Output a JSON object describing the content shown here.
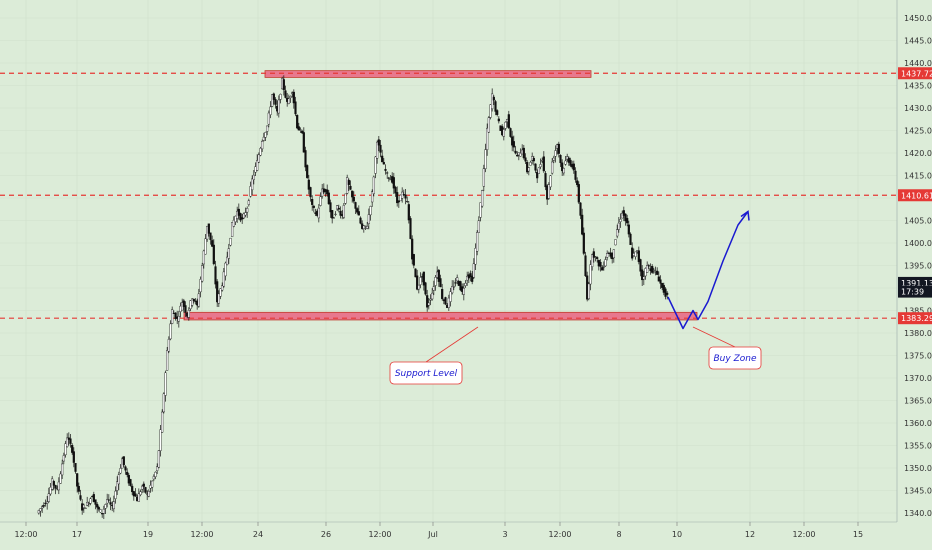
{
  "chart_data": {
    "type": "candlestick",
    "y_axis": {
      "ticks": [
        "1450.00",
        "1445.00",
        "1440.00",
        "1435.00",
        "1430.00",
        "1425.00",
        "1420.00",
        "1415.00",
        "1410.00",
        "1405.00",
        "1400.00",
        "1395.00",
        "1390.00",
        "1385.00",
        "1380.00",
        "1375.00",
        "1370.00",
        "1365.00",
        "1360.00",
        "1355.00",
        "1350.00",
        "1345.00",
        "1340.00"
      ],
      "range": [
        1338,
        1454
      ]
    },
    "x_axis": {
      "ticks": [
        "12:00",
        "17",
        "19",
        "12:00",
        "24",
        "26",
        "12:00",
        "Jul",
        "3",
        "12:00",
        "8",
        "10",
        "12",
        "12:00",
        "15"
      ]
    },
    "price_tags": [
      {
        "label": "1437.72",
        "value": 1437.72,
        "color": "#e53935"
      },
      {
        "label": "1410.61",
        "value": 1410.61,
        "color": "#e53935"
      },
      {
        "label": "1391.13",
        "value": 1391.13,
        "color": "#131722"
      },
      {
        "label": "17:39",
        "value": 1389.2,
        "color": "#131722"
      },
      {
        "label": "1383.29",
        "value": 1383.29,
        "color": "#e53935"
      }
    ],
    "horizontal_levels": [
      1437.72,
      1410.61,
      1383.29
    ],
    "zones": [
      {
        "name": "resistance",
        "from": 1436.8,
        "to": 1438.3
      },
      {
        "name": "support",
        "from": 1382.9,
        "to": 1384.6
      }
    ],
    "annotations": [
      {
        "name": "support",
        "text": "Support Level"
      },
      {
        "name": "buy",
        "text": "Buy Zone"
      }
    ],
    "price_path": [
      [
        0,
        1340
      ],
      [
        2,
        1343
      ],
      [
        3,
        1347
      ],
      [
        4,
        1345
      ],
      [
        5,
        1351
      ],
      [
        6,
        1357
      ],
      [
        7,
        1354
      ],
      [
        8,
        1346
      ],
      [
        9,
        1341
      ],
      [
        10,
        1342
      ],
      [
        11,
        1344
      ],
      [
        12,
        1341
      ],
      [
        13,
        1340
      ],
      [
        14,
        1343
      ],
      [
        15,
        1341
      ],
      [
        16,
        1347
      ],
      [
        17,
        1352
      ],
      [
        18,
        1348
      ],
      [
        19,
        1345
      ],
      [
        20,
        1343
      ],
      [
        21,
        1346
      ],
      [
        22,
        1344
      ],
      [
        24,
        1350
      ],
      [
        25,
        1362
      ],
      [
        26,
        1376
      ],
      [
        27,
        1385
      ],
      [
        28,
        1383
      ],
      [
        29,
        1387
      ],
      [
        30,
        1384
      ],
      [
        31,
        1388
      ],
      [
        32,
        1386
      ],
      [
        33,
        1395
      ],
      [
        34,
        1404
      ],
      [
        35,
        1399
      ],
      [
        36,
        1387
      ],
      [
        37,
        1391
      ],
      [
        38,
        1397
      ],
      [
        39,
        1404
      ],
      [
        40,
        1407
      ],
      [
        41,
        1405
      ],
      [
        42,
        1408
      ],
      [
        43,
        1414
      ],
      [
        44,
        1418
      ],
      [
        45,
        1423
      ],
      [
        46,
        1426
      ],
      [
        47,
        1433
      ],
      [
        48,
        1429
      ],
      [
        49,
        1436
      ],
      [
        50,
        1431
      ],
      [
        51,
        1434
      ],
      [
        52,
        1426
      ],
      [
        53,
        1424
      ],
      [
        54,
        1414
      ],
      [
        55,
        1408
      ],
      [
        56,
        1406
      ],
      [
        57,
        1412
      ],
      [
        58,
        1411
      ],
      [
        59,
        1405
      ],
      [
        60,
        1408
      ],
      [
        61,
        1406
      ],
      [
        62,
        1414
      ],
      [
        63,
        1410
      ],
      [
        64,
        1407
      ],
      [
        65,
        1403
      ],
      [
        66,
        1404
      ],
      [
        67,
        1411
      ],
      [
        68,
        1423
      ],
      [
        69,
        1418
      ],
      [
        70,
        1415
      ],
      [
        71,
        1414
      ],
      [
        72,
        1409
      ],
      [
        73,
        1411
      ],
      [
        74,
        1409
      ],
      [
        75,
        1397
      ],
      [
        76,
        1390
      ],
      [
        77,
        1393
      ],
      [
        78,
        1386
      ],
      [
        79,
        1389
      ],
      [
        80,
        1394
      ],
      [
        81,
        1388
      ],
      [
        82,
        1386
      ],
      [
        83,
        1390
      ],
      [
        84,
        1392
      ],
      [
        85,
        1389
      ],
      [
        86,
        1393
      ],
      [
        87,
        1392
      ],
      [
        88,
        1402
      ],
      [
        89,
        1412
      ],
      [
        90,
        1425
      ],
      [
        91,
        1433
      ],
      [
        92,
        1428
      ],
      [
        93,
        1424
      ],
      [
        94,
        1428
      ],
      [
        95,
        1422
      ],
      [
        96,
        1419
      ],
      [
        97,
        1421
      ],
      [
        98,
        1416
      ],
      [
        99,
        1419
      ],
      [
        100,
        1415
      ],
      [
        101,
        1419
      ],
      [
        102,
        1410
      ],
      [
        103,
        1418
      ],
      [
        104,
        1422
      ],
      [
        105,
        1416
      ],
      [
        106,
        1419
      ],
      [
        107,
        1417
      ],
      [
        108,
        1413
      ],
      [
        109,
        1402
      ],
      [
        110,
        1388
      ],
      [
        111,
        1398
      ],
      [
        112,
        1396
      ],
      [
        113,
        1394
      ],
      [
        114,
        1398
      ],
      [
        115,
        1397
      ],
      [
        116,
        1403
      ],
      [
        117,
        1407
      ],
      [
        118,
        1404
      ],
      [
        119,
        1397
      ],
      [
        120,
        1398
      ],
      [
        121,
        1392
      ],
      [
        122,
        1395
      ],
      [
        123,
        1394
      ],
      [
        124,
        1393
      ],
      [
        125,
        1390
      ],
      [
        126,
        1388
      ]
    ],
    "projection": [
      [
        126,
        1388
      ],
      [
        129,
        1381
      ],
      [
        131,
        1385
      ],
      [
        132,
        1383
      ],
      [
        134,
        1387
      ],
      [
        137,
        1396
      ],
      [
        140,
        1404
      ],
      [
        142,
        1407
      ]
    ]
  }
}
